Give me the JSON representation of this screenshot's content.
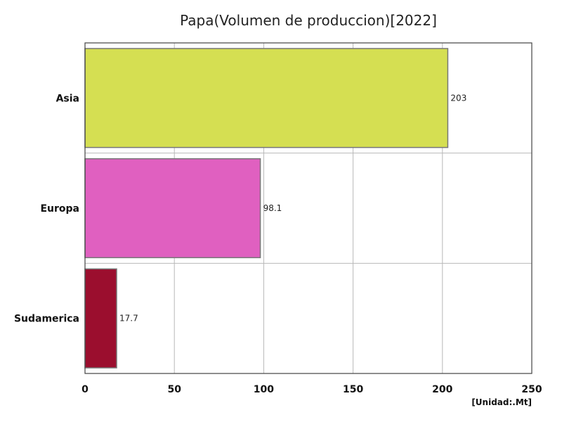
{
  "chart_data": {
    "type": "bar",
    "orientation": "horizontal",
    "title": "Papa(Volumen de produccion)[2022]",
    "unit_label": "[Unidad:.Mt]",
    "categories": [
      "Asia",
      "Europa",
      "Sudamerica"
    ],
    "values": [
      203,
      98.1,
      17.7
    ],
    "value_labels": [
      "203",
      "98.1",
      "17.7"
    ],
    "colors": [
      "#d5df52",
      "#e060c0",
      "#9b0e2e"
    ],
    "xlim": [
      0,
      250
    ],
    "xticks": [
      0,
      50,
      100,
      150,
      200,
      250
    ],
    "xtick_labels": [
      "0",
      "50",
      "100",
      "150",
      "200",
      "250"
    ],
    "grid": true,
    "legend": "none"
  }
}
